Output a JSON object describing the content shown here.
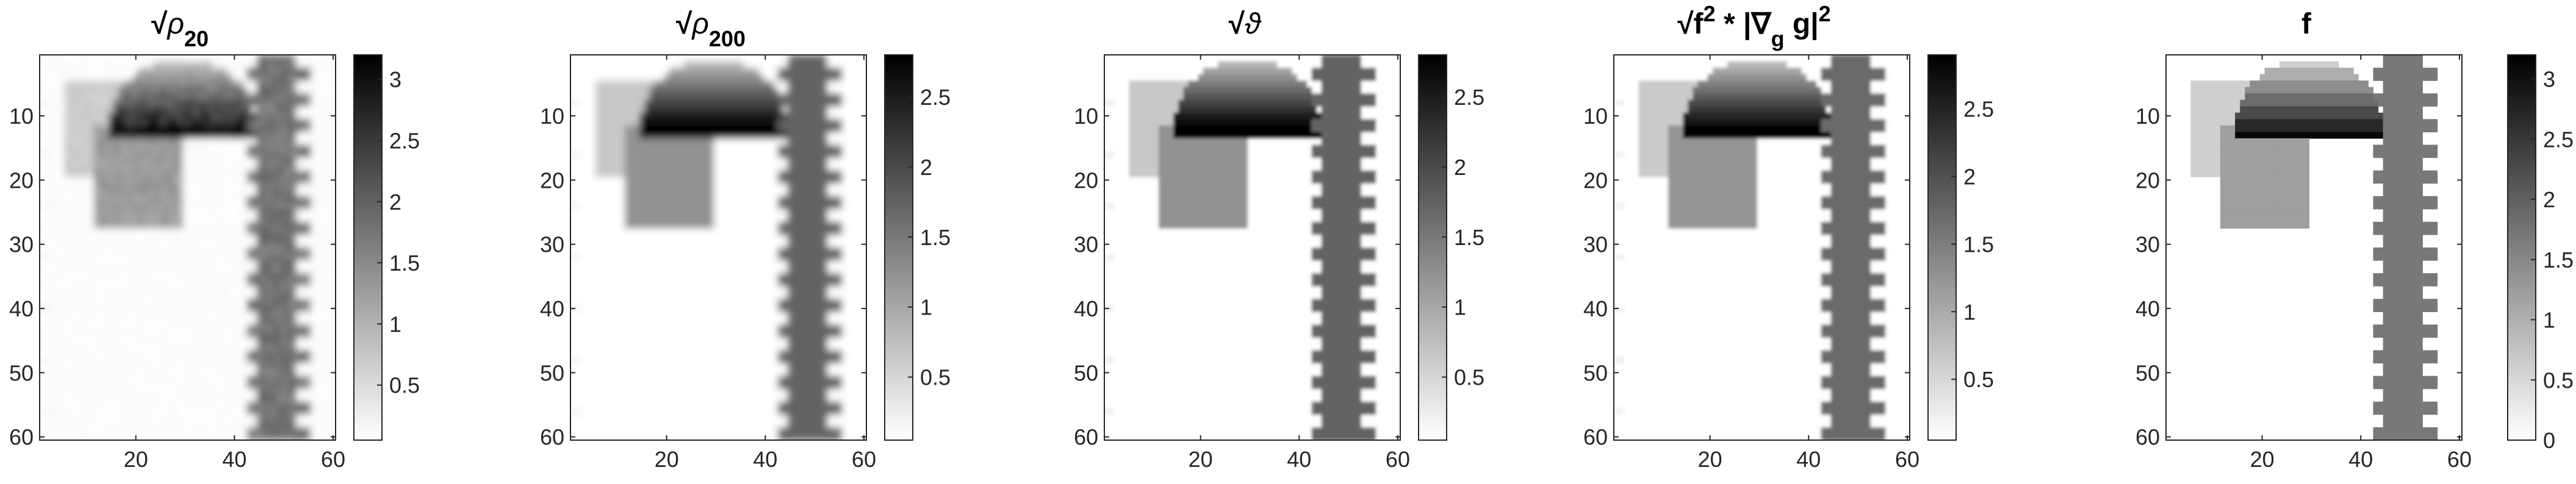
{
  "chart_data": [
    {
      "type": "heatmap",
      "title_parts": {
        "base": "ρ",
        "sub": "20"
      },
      "xticks": [
        20,
        40,
        60
      ],
      "yticks": [
        10,
        20,
        30,
        40,
        50,
        60
      ],
      "xlim": [
        0.5,
        60.5
      ],
      "ylim": [
        0.5,
        60.5
      ],
      "y_direction": "reverse",
      "colorbar": {
        "range": [
          0.05,
          3.2
        ],
        "ticks": [
          "0.5",
          "1",
          "1.5",
          "2",
          "2.5",
          "3"
        ],
        "tick_values": [
          0.5,
          1,
          1.5,
          2,
          2.5,
          3
        ]
      },
      "colormap": "white-to-black",
      "rendering": "noisy-blurred"
    },
    {
      "type": "heatmap",
      "title_parts": {
        "base": "ρ",
        "sub": "200"
      },
      "xticks": [
        20,
        40,
        60
      ],
      "yticks": [
        10,
        20,
        30,
        40,
        50,
        60
      ],
      "xlim": [
        0.5,
        60.5
      ],
      "ylim": [
        0.5,
        60.5
      ],
      "y_direction": "reverse",
      "colorbar": {
        "range": [
          0.05,
          2.8
        ],
        "ticks": [
          "0.5",
          "1",
          "1.5",
          "2",
          "2.5"
        ],
        "tick_values": [
          0.5,
          1,
          1.5,
          2,
          2.5
        ]
      },
      "colormap": "white-to-black",
      "rendering": "blurred"
    },
    {
      "type": "heatmap",
      "title_parts": {
        "base": "ϑ",
        "sub": ""
      },
      "xticks": [
        20,
        40,
        60
      ],
      "yticks": [
        10,
        20,
        30,
        40,
        50,
        60
      ],
      "xlim": [
        0.5,
        60.5
      ],
      "ylim": [
        0.5,
        60.5
      ],
      "y_direction": "reverse",
      "colorbar": {
        "range": [
          0.05,
          2.8
        ],
        "ticks": [
          "0.5",
          "1",
          "1.5",
          "2",
          "2.5"
        ],
        "tick_values": [
          0.5,
          1,
          1.5,
          2,
          2.5
        ]
      },
      "colormap": "white-to-black",
      "rendering": "smooth"
    },
    {
      "type": "heatmap",
      "title_parts": {
        "a": "f",
        "sup1": "2",
        "b": " * |∇",
        "sub": "g",
        "c": " g|",
        "sup2": "2"
      },
      "xticks": [
        20,
        40,
        60
      ],
      "yticks": [
        10,
        20,
        30,
        40,
        50,
        60
      ],
      "xlim": [
        0.5,
        60.5
      ],
      "ylim": [
        0.5,
        60.5
      ],
      "y_direction": "reverse",
      "colorbar": {
        "range": [
          0.05,
          2.9
        ],
        "ticks": [
          "0.5",
          "1",
          "1.5",
          "2",
          "2.5"
        ],
        "tick_values": [
          0.5,
          1,
          1.5,
          2,
          2.5
        ]
      },
      "colormap": "white-to-black",
      "rendering": "smooth"
    },
    {
      "type": "heatmap",
      "title": "f",
      "xticks": [
        20,
        40,
        60
      ],
      "yticks": [
        10,
        20,
        30,
        40,
        50,
        60
      ],
      "xlim": [
        0.5,
        60.5
      ],
      "ylim": [
        0.5,
        60.5
      ],
      "y_direction": "reverse",
      "colorbar": {
        "range": [
          0,
          3.2
        ],
        "ticks": [
          "0",
          "0.5",
          "1",
          "1.5",
          "2",
          "2.5",
          "3"
        ],
        "tick_values": [
          0,
          0.5,
          1,
          1.5,
          2,
          2.5,
          3
        ]
      },
      "colormap": "white-to-black",
      "rendering": "sharp",
      "regions": [
        {
          "shape": "rectangle",
          "x": [
            6,
            21
          ],
          "y": [
            5,
            19
          ],
          "value": 0.6
        },
        {
          "shape": "rectangle",
          "x": [
            12,
            29
          ],
          "y": [
            12,
            27
          ],
          "value": 1.2
        },
        {
          "shape": "half-ellipse",
          "center_x": 29.5,
          "center_y": 12,
          "radius_x": 15,
          "radius_y": 11,
          "value_min": 0.6,
          "value_max": 3.1,
          "gradient": "top-to-bottom"
        },
        {
          "shape": "crenellated-column",
          "x": [
            45,
            52
          ],
          "y": [
            1,
            60
          ],
          "tooth_x": [
            43,
            55
          ],
          "tooth_period": 4,
          "value": 1.7
        }
      ]
    }
  ]
}
